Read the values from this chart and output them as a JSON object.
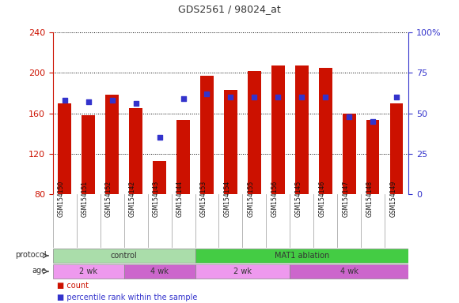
{
  "title": "GDS2561 / 98024_at",
  "samples": [
    "GSM154150",
    "GSM154151",
    "GSM154152",
    "GSM154142",
    "GSM154143",
    "GSM154144",
    "GSM154153",
    "GSM154154",
    "GSM154155",
    "GSM154156",
    "GSM154145",
    "GSM154146",
    "GSM154147",
    "GSM154148",
    "GSM154149"
  ],
  "counts": [
    170,
    158,
    178,
    165,
    113,
    153,
    197,
    183,
    202,
    207,
    207,
    205,
    160,
    153,
    170
  ],
  "percentiles": [
    58,
    57,
    58,
    56,
    35,
    59,
    62,
    60,
    60,
    60,
    60,
    60,
    48,
    45,
    60
  ],
  "ylim_left": [
    80,
    240
  ],
  "ylim_right": [
    0,
    100
  ],
  "yticks_left": [
    80,
    120,
    160,
    200,
    240
  ],
  "yticks_right": [
    0,
    25,
    50,
    75,
    100
  ],
  "bar_color": "#cc1100",
  "dot_color": "#3333cc",
  "bar_width": 0.55,
  "protocol_groups": [
    {
      "label": "control",
      "start": 0,
      "end": 6,
      "color": "#aaddaa"
    },
    {
      "label": "MAT1 ablation",
      "start": 6,
      "end": 15,
      "color": "#44cc44"
    }
  ],
  "age_groups": [
    {
      "label": "2 wk",
      "start": 0,
      "end": 3,
      "color": "#ee99ee"
    },
    {
      "label": "4 wk",
      "start": 3,
      "end": 6,
      "color": "#cc66cc"
    },
    {
      "label": "2 wk",
      "start": 6,
      "end": 10,
      "color": "#ee99ee"
    },
    {
      "label": "4 wk",
      "start": 10,
      "end": 15,
      "color": "#cc66cc"
    }
  ],
  "protocol_label": "protocol",
  "age_label": "age",
  "legend_count_label": "count",
  "legend_pct_label": "percentile rank within the sample",
  "bg_color": "#ffffff",
  "tick_label_area_color": "#c8c8c8",
  "left_axis_color": "#cc1100",
  "right_axis_color": "#3333cc"
}
